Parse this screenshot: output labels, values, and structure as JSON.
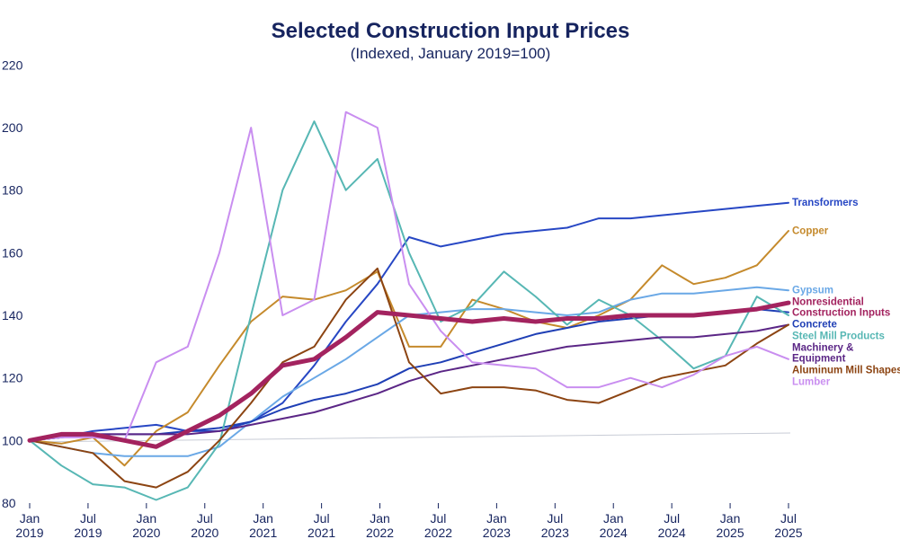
{
  "chart_data": {
    "type": "line",
    "title": "Selected Construction Input Prices",
    "subtitle": "(Indexed, January 2019=100)",
    "xlabel": "",
    "ylabel": "",
    "xlim": [
      "Jan 2019",
      "Jul 2025"
    ],
    "ylim": [
      80,
      225
    ],
    "grid": false,
    "legend_placement": "right, at line ends",
    "y_ticks": [
      "220",
      "200",
      "180",
      "160",
      "140",
      "120",
      "100",
      "80"
    ],
    "x_ticks": [
      {
        "month": "Jan",
        "year": "2019"
      },
      {
        "month": "Jul",
        "year": "2019"
      },
      {
        "month": "Jan",
        "year": "2020"
      },
      {
        "month": "Jul",
        "year": "2020"
      },
      {
        "month": "Jan",
        "year": "2021"
      },
      {
        "month": "Jul",
        "year": "2021"
      },
      {
        "month": "Jan",
        "year": "2022"
      },
      {
        "month": "Jul",
        "year": "2022"
      },
      {
        "month": "Jan",
        "year": "2023"
      },
      {
        "month": "Jul",
        "year": "2023"
      },
      {
        "month": "Jan",
        "year": "2024"
      },
      {
        "month": "Jul",
        "year": "2024"
      },
      {
        "month": "Jan",
        "year": "2025"
      },
      {
        "month": "Jul",
        "year": "2025"
      }
    ],
    "x": [
      "Jan 2019",
      "Jul 2019",
      "Jan 2020",
      "Apr 2020",
      "Jul 2020",
      "Oct 2020",
      "Jan 2021",
      "Apr 2021",
      "Jul 2021",
      "Oct 2021",
      "Jan 2022",
      "Apr 2022",
      "Jul 2022",
      "Oct 2022",
      "Jan 2023",
      "Apr 2023",
      "Jul 2023",
      "Oct 2023",
      "Jan 2024",
      "Apr 2024",
      "Jul 2024",
      "Oct 2024",
      "Jan 2025",
      "Apr 2025",
      "Jul 2025"
    ],
    "series": [
      {
        "name": "Transformers",
        "color": "#2747c4",
        "width": 2,
        "values": [
          100,
          101,
          103,
          104,
          105,
          103,
          103,
          106,
          112,
          124,
          138,
          150,
          165,
          162,
          164,
          166,
          167,
          168,
          171,
          171,
          172,
          173,
          174,
          175,
          176
        ]
      },
      {
        "name": "Copper",
        "color": "#c58a2c",
        "width": 2,
        "values": [
          100,
          99,
          101,
          92,
          103,
          109,
          124,
          138,
          146,
          145,
          148,
          154,
          130,
          130,
          145,
          142,
          138,
          136,
          140,
          145,
          156,
          150,
          152,
          156,
          167
        ]
      },
      {
        "name": "Gypsum",
        "color": "#6aa8e6",
        "width": 2,
        "values": [
          100,
          98,
          96,
          95,
          95,
          95,
          98,
          106,
          114,
          120,
          126,
          133,
          140,
          141,
          142,
          142,
          141,
          140,
          141,
          145,
          147,
          147,
          148,
          149,
          148
        ]
      },
      {
        "name": "Nonresidential Construction Inputs",
        "color": "#a3235f",
        "width": 5,
        "values": [
          100,
          102,
          102,
          100,
          98,
          103,
          108,
          115,
          124,
          126,
          133,
          141,
          140,
          139,
          138,
          139,
          138,
          139,
          139,
          140,
          140,
          140,
          141,
          142,
          144
        ]
      },
      {
        "name": "Concrete",
        "color": "#1f3fb5",
        "width": 2,
        "values": [
          100,
          101,
          102,
          102,
          102,
          103,
          104,
          106,
          110,
          113,
          115,
          118,
          123,
          125,
          128,
          131,
          134,
          136,
          138,
          139,
          140,
          140,
          141,
          142,
          141
        ]
      },
      {
        "name": "Steel Mill Products",
        "color": "#57b7b4",
        "width": 2,
        "values": [
          100,
          92,
          86,
          85,
          81,
          85,
          99,
          140,
          180,
          202,
          180,
          190,
          160,
          138,
          143,
          154,
          146,
          137,
          145,
          140,
          132,
          123,
          127,
          146,
          140
        ]
      },
      {
        "name": "Machinery & Equipment",
        "color": "#5b2686",
        "width": 2,
        "values": [
          100,
          101,
          102,
          102,
          102,
          102,
          103,
          105,
          107,
          109,
          112,
          115,
          119,
          122,
          124,
          126,
          128,
          130,
          131,
          132,
          133,
          133,
          134,
          135,
          137
        ]
      },
      {
        "name": "Aluminum Mill Shapes",
        "color": "#8c4412",
        "width": 2,
        "values": [
          100,
          98,
          96,
          87,
          85,
          90,
          100,
          112,
          125,
          130,
          145,
          155,
          125,
          115,
          117,
          117,
          116,
          113,
          112,
          116,
          120,
          122,
          124,
          131,
          137
        ]
      },
      {
        "name": "Lumber",
        "color": "#c98ef0",
        "width": 2,
        "values": [
          100,
          101,
          101,
          100,
          125,
          130,
          160,
          200,
          140,
          145,
          205,
          200,
          150,
          135,
          125,
          124,
          123,
          117,
          117,
          120,
          117,
          121,
          127,
          130,
          126
        ]
      }
    ]
  }
}
